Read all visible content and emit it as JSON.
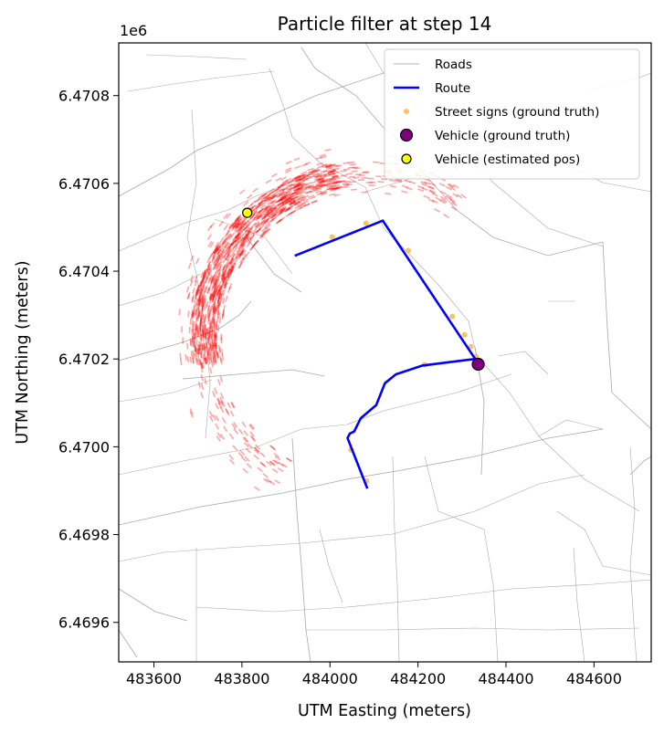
{
  "chart_data": {
    "type": "scatter",
    "title": "Particle filter at step 14",
    "xlabel": "UTM Easting (meters)",
    "ylabel": "UTM Northing (meters)",
    "y_offset_label": "1e6",
    "xlim": [
      483520,
      484730
    ],
    "ylim": [
      6469510,
      6470920
    ],
    "xticks": [
      483600,
      483800,
      484000,
      484200,
      484400,
      484600
    ],
    "xtick_labels": [
      "483600",
      "483800",
      "484000",
      "484200",
      "484400",
      "484600"
    ],
    "yticks": [
      6469600,
      6469800,
      6470000,
      6470200,
      6470400,
      6470600,
      6470800
    ],
    "ytick_labels": [
      "6.4696",
      "6.4698",
      "6.4700",
      "6.4702",
      "6.4704",
      "6.4706",
      "6.4708"
    ],
    "grid": false,
    "legend_position": "upper right",
    "legend": [
      {
        "label": "Roads",
        "kind": "line",
        "color": "#9a9a9a"
      },
      {
        "label": "Route",
        "kind": "line",
        "color": "#0000ff"
      },
      {
        "label": "Street signs (ground truth)",
        "kind": "dot",
        "color": "#f5b342"
      },
      {
        "label": "Vehicle (ground truth)",
        "kind": "marker",
        "color": "#800080"
      },
      {
        "label": "Vehicle (estimated pos)",
        "kind": "marker",
        "color": "#ffff00"
      }
    ],
    "series": [
      {
        "name": "Route",
        "color": "#0000ff",
        "points": [
          [
            483920,
            6470435
          ],
          [
            484120,
            6470515
          ],
          [
            484330,
            6470200
          ],
          [
            484210,
            6470185
          ],
          [
            484150,
            6470165
          ],
          [
            484125,
            6470145
          ],
          [
            484105,
            6470095
          ],
          [
            484070,
            6470065
          ],
          [
            484055,
            6470035
          ],
          [
            484045,
            6470030
          ],
          [
            484040,
            6470020
          ],
          [
            484085,
            6469905
          ]
        ]
      },
      {
        "name": "Street signs (ground truth)",
        "color": "#f5b342",
        "points": [
          [
            484005,
            6470478
          ],
          [
            484082,
            6470509
          ],
          [
            484178,
            6470447
          ],
          [
            484278,
            6470297
          ],
          [
            484306,
            6470255
          ],
          [
            484320,
            6470228
          ],
          [
            484332,
            6470205
          ],
          [
            484215,
            6470187
          ],
          [
            484048,
            6469993
          ],
          [
            484083,
            6469922
          ]
        ]
      },
      {
        "name": "Vehicle (ground truth)",
        "color": "#800080",
        "points": [
          [
            484337,
            6470188
          ]
        ]
      },
      {
        "name": "Vehicle (estimated pos)",
        "color": "#ffff00",
        "points": [
          [
            483812,
            6470533
          ]
        ]
      }
    ],
    "particle_cloud": {
      "color": "#ff0000",
      "center": [
        484083,
        6470250
      ],
      "radius_min": 330,
      "radius_mode": 370,
      "radius_max": 435,
      "angle_start_deg": 55,
      "angle_end_deg": 240,
      "dense_arc_deg": [
        100,
        190
      ]
    }
  },
  "colors": {
    "roads": "#9a9a9a",
    "particles": "#ff0000",
    "route": "#0000ff"
  }
}
